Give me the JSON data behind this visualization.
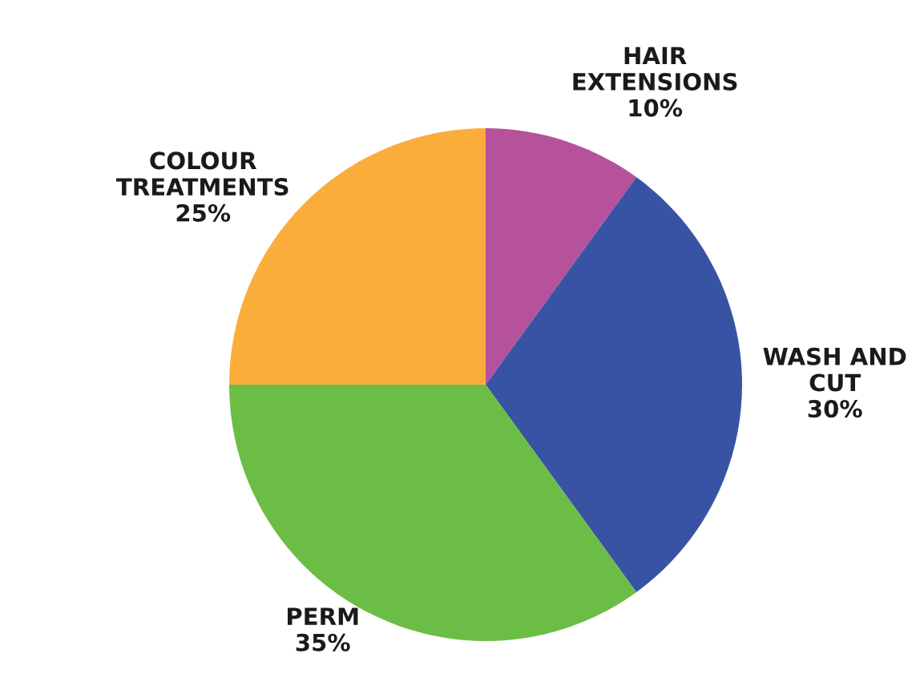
{
  "chart_data": {
    "type": "pie",
    "categories": [
      "HAIR EXTENSIONS",
      "WASH AND CUT",
      "PERM",
      "COLOUR TREATMENTS"
    ],
    "values": [
      10,
      30,
      35,
      25
    ],
    "value_labels": [
      "10%",
      "30%",
      "35%",
      "25%"
    ],
    "colors": [
      "#b5529b",
      "#3953a4",
      "#6cbd45",
      "#fbad3b"
    ],
    "legend": false
  }
}
